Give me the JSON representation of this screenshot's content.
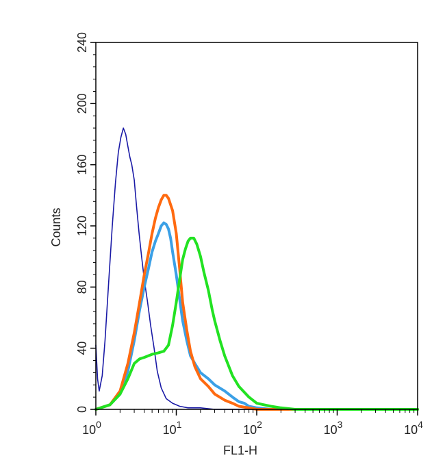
{
  "chart_data": {
    "type": "line",
    "title": "",
    "xlabel": "FL1-H",
    "ylabel": "Counts",
    "xscale": "log",
    "xlim": [
      1,
      10000
    ],
    "ylim": [
      0,
      240
    ],
    "x_ticks": [
      {
        "value": 1,
        "base": "10",
        "exp": "0"
      },
      {
        "value": 10,
        "base": "10",
        "exp": "1"
      },
      {
        "value": 100,
        "base": "10",
        "exp": "2"
      },
      {
        "value": 1000,
        "base": "10",
        "exp": "3"
      },
      {
        "value": 10000,
        "base": "10",
        "exp": "4"
      }
    ],
    "y_ticks": [
      "0",
      "40",
      "80",
      "120",
      "160",
      "200",
      "240"
    ],
    "grid": false,
    "legend": "none",
    "series": [
      {
        "color": "#1a1aa6",
        "stroke": "thin",
        "x": [
          1.0,
          1.05,
          1.1,
          1.2,
          1.3,
          1.45,
          1.6,
          1.75,
          1.9,
          2.05,
          2.2,
          2.35,
          2.5,
          2.65,
          2.8,
          3.0,
          3.2,
          3.45,
          3.7,
          4.0,
          4.4,
          4.8,
          5.3,
          5.8,
          6.5,
          7.5,
          9.0,
          11.0,
          14.0,
          20.0,
          30.0,
          50.0,
          100.0,
          1000.0,
          10000.0
        ],
        "y": [
          42,
          20,
          12,
          22,
          45,
          85,
          120,
          148,
          168,
          178,
          184,
          180,
          172,
          165,
          160,
          150,
          133,
          115,
          100,
          85,
          70,
          55,
          40,
          25,
          14,
          7,
          4,
          2,
          1,
          1,
          0,
          0,
          0,
          0,
          0
        ]
      },
      {
        "color": "#3ba0e6",
        "stroke": "thick",
        "x": [
          1.0,
          1.5,
          2.0,
          2.5,
          3.0,
          3.5,
          4.0,
          4.5,
          5.0,
          5.5,
          6.0,
          6.5,
          7.0,
          7.5,
          8.0,
          8.5,
          9.0,
          10.0,
          11.0,
          12.0,
          13.5,
          15.0,
          17.0,
          20.0,
          25.0,
          30.0,
          40.0,
          50.0,
          60.0,
          70.0,
          80.0,
          100.0,
          150.0,
          1000.0,
          10000.0
        ],
        "y": [
          0,
          3,
          10,
          25,
          45,
          65,
          80,
          92,
          103,
          110,
          115,
          120,
          122,
          121,
          118,
          112,
          103,
          88,
          72,
          58,
          45,
          35,
          30,
          24,
          20,
          16,
          12,
          8,
          5,
          4,
          2,
          1,
          0,
          0,
          0
        ]
      },
      {
        "color": "#ff6a10",
        "stroke": "thick",
        "x": [
          1.0,
          1.5,
          2.0,
          2.5,
          3.0,
          3.5,
          4.0,
          4.5,
          5.0,
          5.5,
          6.0,
          6.5,
          7.0,
          7.5,
          8.0,
          9.0,
          10.0,
          11.0,
          12.0,
          13.5,
          15.0,
          17.0,
          20.0,
          25.0,
          30.0,
          40.0,
          50.0,
          60.0,
          80.0,
          100.0,
          1000.0,
          10000.0
        ],
        "y": [
          0,
          3,
          12,
          30,
          50,
          70,
          88,
          102,
          115,
          125,
          132,
          137,
          140,
          140,
          138,
          130,
          115,
          92,
          70,
          52,
          38,
          28,
          20,
          15,
          10,
          6,
          4,
          2,
          1,
          0,
          0,
          0
        ]
      },
      {
        "color": "#22e222",
        "stroke": "thick",
        "x": [
          1.0,
          1.5,
          2.0,
          2.5,
          3.0,
          3.5,
          4.0,
          5.0,
          6.0,
          7.0,
          8.0,
          9.0,
          10.0,
          11.0,
          12.0,
          13.0,
          14.0,
          15.0,
          16.5,
          18.0,
          20.0,
          22.0,
          25.0,
          28.0,
          30.0,
          35.0,
          40.0,
          50.0,
          60.0,
          80.0,
          100.0,
          150.0,
          200.0,
          300.0,
          1000.0,
          10000.0
        ],
        "y": [
          0,
          3,
          10,
          20,
          30,
          33,
          34,
          36,
          37,
          38,
          42,
          55,
          70,
          85,
          98,
          105,
          110,
          112,
          112,
          108,
          100,
          90,
          78,
          65,
          58,
          45,
          35,
          22,
          15,
          8,
          4,
          2,
          1,
          0,
          0,
          0
        ]
      }
    ]
  }
}
